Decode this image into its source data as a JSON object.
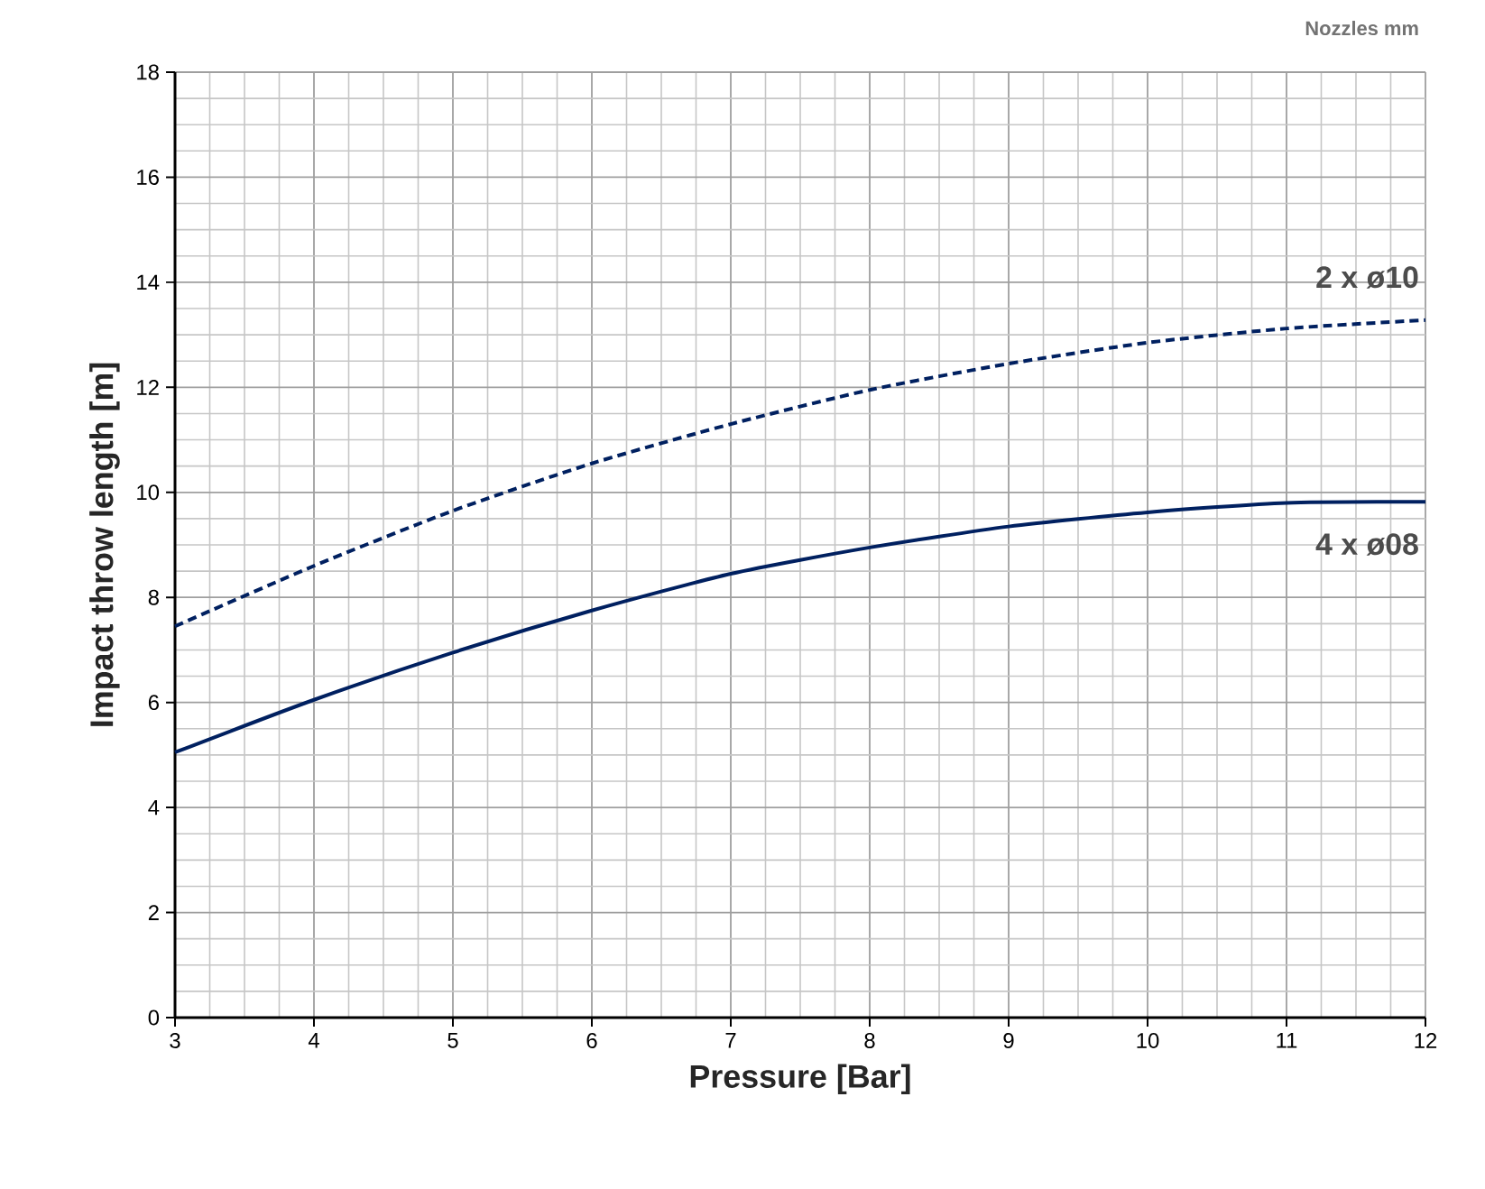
{
  "chart_data": {
    "type": "line",
    "xlabel": "Pressure [Bar]",
    "ylabel": "Impact throw length [m]",
    "annotations": [
      "Nozzles mm"
    ],
    "x": [
      3,
      4,
      5,
      6,
      7,
      8,
      9,
      10,
      11,
      12
    ],
    "series": [
      {
        "name": "2 x ø10",
        "color": "#002060",
        "line_style": "dashed",
        "values": [
          7.45,
          8.6,
          9.65,
          10.55,
          11.3,
          11.95,
          12.45,
          12.85,
          13.12,
          13.28
        ]
      },
      {
        "name": "4 x ø08",
        "color": "#002060",
        "line_style": "solid",
        "values": [
          5.05,
          6.05,
          6.95,
          7.75,
          8.45,
          8.95,
          9.35,
          9.62,
          9.8,
          9.82
        ]
      }
    ],
    "xlim": [
      3,
      12
    ],
    "ylim": [
      0,
      18
    ],
    "xticks": [
      3,
      4,
      5,
      6,
      7,
      8,
      9,
      10,
      11,
      12
    ],
    "yticks": [
      0,
      2,
      4,
      6,
      8,
      10,
      12,
      14,
      16,
      18
    ],
    "grid": true,
    "marker": "none"
  }
}
